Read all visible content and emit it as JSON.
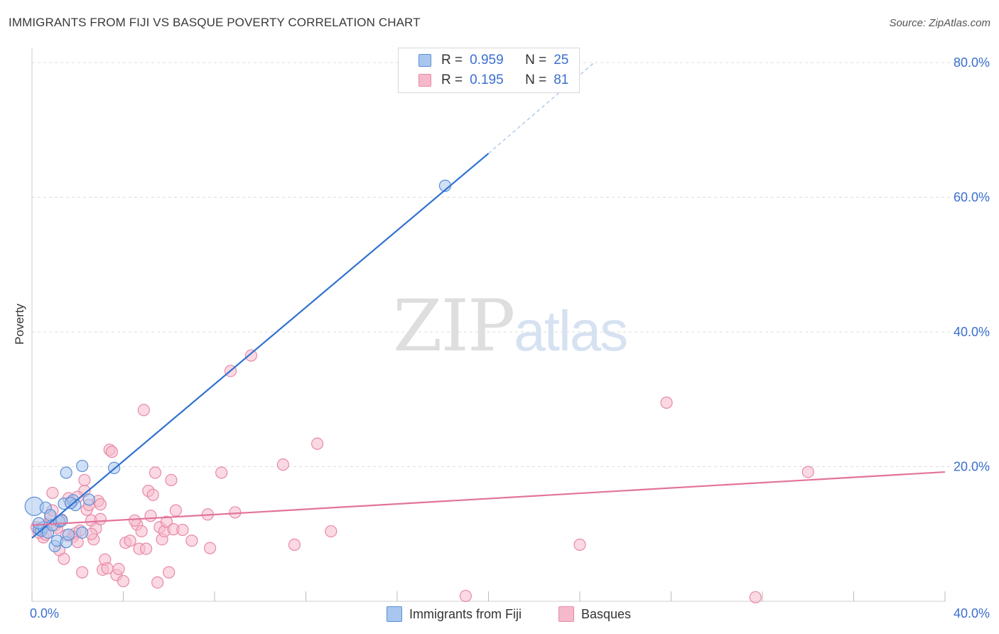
{
  "title": "IMMIGRANTS FROM FIJI VS BASQUE POVERTY CORRELATION CHART",
  "source": "Source: ZipAtlas.com",
  "watermark": {
    "zip": "ZIP",
    "atlas": "atlas"
  },
  "legend": {
    "r_label": "R =",
    "n_label": "N =",
    "fiji": {
      "r": "0.959",
      "n": "25"
    },
    "basques": {
      "r": "0.195",
      "n": "81"
    }
  },
  "colors": {
    "fiji_fill": "#a9c6ef",
    "fiji_stroke": "#5b8fd6",
    "fiji_line": "#2f72d0",
    "basque_fill": "#f6b9cb",
    "basque_stroke": "#e889a8",
    "basque_line": "#e2739b",
    "axis_text": "#3a6fcf",
    "grid": "#dddddd"
  },
  "chart_data": {
    "type": "scatter",
    "title": "IMMIGRANTS FROM FIJI VS BASQUE POVERTY CORRELATION CHART",
    "xlabel": "",
    "ylabel": "Poverty",
    "xlim": [
      0,
      40
    ],
    "ylim": [
      0,
      80
    ],
    "x_tick_labels": [
      "0.0%",
      "40.0%"
    ],
    "y_tick_labels": [
      "20.0%",
      "40.0%",
      "60.0%",
      "80.0%"
    ],
    "y_ticks": [
      20,
      40,
      60,
      80
    ],
    "series": [
      {
        "name": "Immigrants from Fiji",
        "points": [
          [
            0.1,
            14.1
          ],
          [
            0.3,
            10.7
          ],
          [
            0.4,
            10.5
          ],
          [
            0.5,
            11.0
          ],
          [
            0.6,
            13.9
          ],
          [
            0.7,
            10.2
          ],
          [
            0.8,
            12.8
          ],
          [
            0.9,
            11.3
          ],
          [
            1.0,
            8.2
          ],
          [
            1.1,
            9.0
          ],
          [
            1.2,
            11.9
          ],
          [
            1.3,
            12.0
          ],
          [
            1.4,
            14.5
          ],
          [
            1.5,
            8.8
          ],
          [
            1.6,
            9.9
          ],
          [
            1.8,
            15.0
          ],
          [
            1.9,
            14.3
          ],
          [
            1.5,
            19.1
          ],
          [
            1.7,
            14.6
          ],
          [
            2.2,
            10.2
          ],
          [
            2.5,
            15.1
          ],
          [
            2.2,
            20.1
          ],
          [
            3.6,
            19.8
          ],
          [
            18.1,
            61.7
          ],
          [
            0.3,
            11.6
          ]
        ],
        "trend": {
          "x0": 0.0,
          "y0": 9.4,
          "x1": 20.0,
          "y1": 66.5,
          "dashed_to_x": 24.6,
          "dashed_to_y": 79.9
        }
      },
      {
        "name": "Basques",
        "points": [
          [
            0.2,
            11.0
          ],
          [
            0.4,
            10.5
          ],
          [
            0.5,
            9.5
          ],
          [
            0.6,
            9.9
          ],
          [
            0.7,
            11.5
          ],
          [
            0.8,
            12.5
          ],
          [
            0.9,
            16.1
          ],
          [
            1.0,
            11.2
          ],
          [
            1.1,
            10.9
          ],
          [
            1.2,
            7.6
          ],
          [
            1.3,
            12.1
          ],
          [
            1.4,
            6.3
          ],
          [
            1.5,
            9.8
          ],
          [
            1.6,
            15.3
          ],
          [
            1.7,
            14.7
          ],
          [
            1.8,
            9.6
          ],
          [
            1.9,
            10.1
          ],
          [
            2.0,
            8.8
          ],
          [
            2.1,
            10.5
          ],
          [
            2.2,
            4.3
          ],
          [
            2.3,
            16.4
          ],
          [
            2.3,
            18.0
          ],
          [
            2.4,
            13.6
          ],
          [
            2.5,
            14.3
          ],
          [
            2.6,
            12.0
          ],
          [
            2.7,
            9.2
          ],
          [
            2.8,
            10.8
          ],
          [
            2.9,
            14.9
          ],
          [
            3.0,
            14.4
          ],
          [
            3.1,
            4.7
          ],
          [
            3.2,
            6.2
          ],
          [
            3.3,
            4.9
          ],
          [
            3.4,
            22.5
          ],
          [
            3.5,
            22.2
          ],
          [
            3.7,
            3.9
          ],
          [
            3.8,
            4.8
          ],
          [
            4.0,
            3.0
          ],
          [
            4.1,
            8.7
          ],
          [
            4.3,
            9.0
          ],
          [
            4.6,
            11.4
          ],
          [
            4.7,
            7.8
          ],
          [
            4.8,
            10.4
          ],
          [
            4.9,
            28.4
          ],
          [
            5.0,
            7.8
          ],
          [
            5.1,
            16.4
          ],
          [
            5.2,
            12.7
          ],
          [
            5.4,
            19.1
          ],
          [
            5.5,
            2.8
          ],
          [
            5.6,
            11.0
          ],
          [
            5.7,
            9.2
          ],
          [
            5.8,
            10.4
          ],
          [
            5.9,
            11.8
          ],
          [
            6.0,
            4.3
          ],
          [
            6.1,
            18.0
          ],
          [
            6.2,
            10.7
          ],
          [
            6.3,
            13.5
          ],
          [
            6.6,
            10.6
          ],
          [
            7.7,
            12.9
          ],
          [
            7.8,
            7.9
          ],
          [
            8.3,
            19.1
          ],
          [
            8.7,
            34.2
          ],
          [
            8.9,
            13.2
          ],
          [
            9.6,
            36.5
          ],
          [
            11.0,
            20.3
          ],
          [
            11.5,
            8.4
          ],
          [
            12.5,
            23.4
          ],
          [
            13.1,
            10.4
          ],
          [
            19.0,
            0.8
          ],
          [
            24.0,
            8.4
          ],
          [
            27.8,
            29.5
          ],
          [
            34.0,
            19.2
          ],
          [
            31.7,
            0.6
          ],
          [
            0.3,
            10.2
          ],
          [
            0.9,
            13.5
          ],
          [
            1.2,
            11.8
          ],
          [
            2.0,
            15.5
          ],
          [
            2.6,
            10.0
          ],
          [
            3.0,
            12.2
          ],
          [
            4.5,
            12.0
          ],
          [
            5.3,
            15.8
          ],
          [
            7.0,
            9.0
          ]
        ],
        "trend": {
          "x0": 0.0,
          "y0": 11.3,
          "x1": 40.0,
          "y1": 19.2
        }
      }
    ],
    "legend_position": "top-center"
  }
}
